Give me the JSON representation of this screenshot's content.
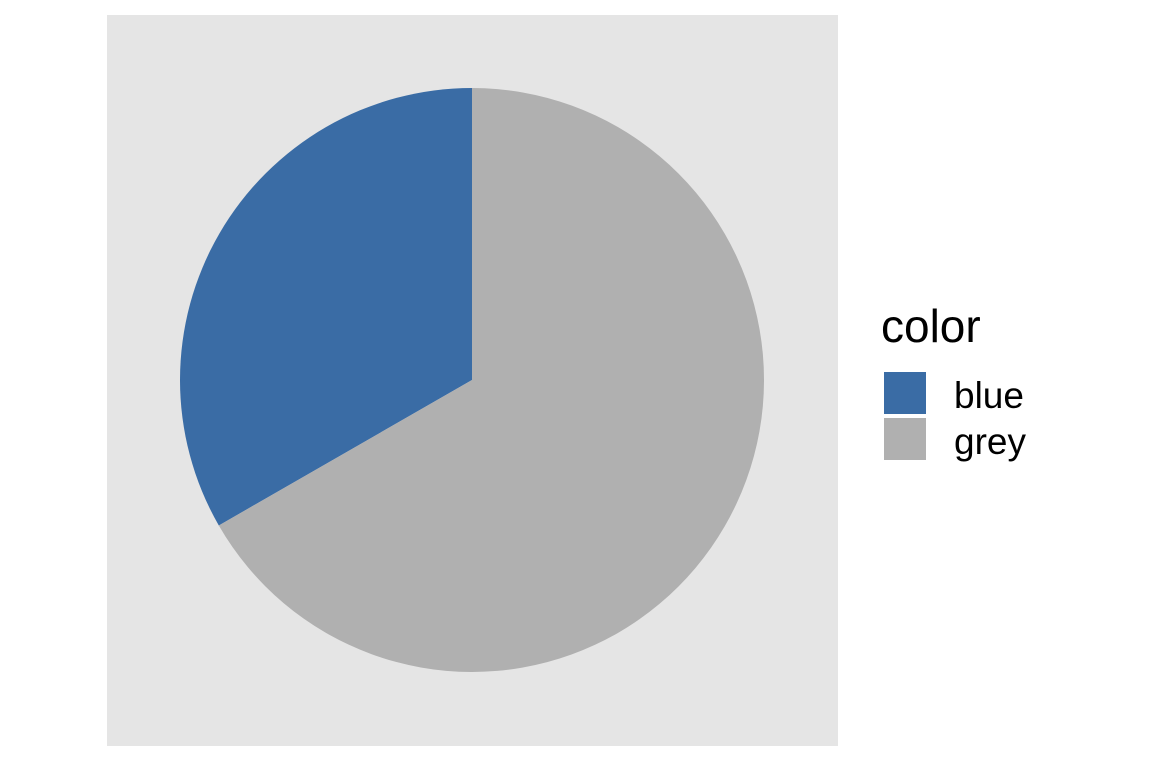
{
  "chart_data": {
    "type": "pie",
    "categories": [
      "blue",
      "grey"
    ],
    "values": [
      33.3,
      66.7
    ],
    "start_angle_deg": 0,
    "direction": "counterclockwise",
    "colors": [
      "#3a6ca5",
      "#b0b0b0"
    ],
    "panel_background": "#e5e5e5",
    "legend": {
      "title": "color",
      "placement": "right",
      "entries": [
        "blue",
        "grey"
      ]
    }
  }
}
